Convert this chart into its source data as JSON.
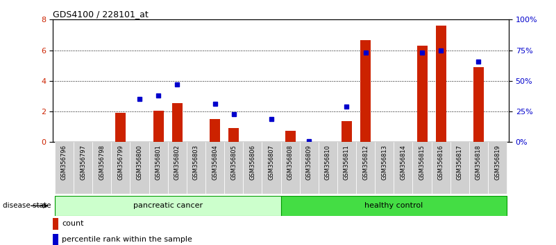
{
  "title": "GDS4100 / 228101_at",
  "samples": [
    "GSM356796",
    "GSM356797",
    "GSM356798",
    "GSM356799",
    "GSM356800",
    "GSM356801",
    "GSM356802",
    "GSM356803",
    "GSM356804",
    "GSM356805",
    "GSM356806",
    "GSM356807",
    "GSM356808",
    "GSM356809",
    "GSM356810",
    "GSM356811",
    "GSM356812",
    "GSM356813",
    "GSM356814",
    "GSM356815",
    "GSM356816",
    "GSM356817",
    "GSM356818",
    "GSM356819"
  ],
  "counts": [
    0,
    0,
    0,
    1.9,
    0,
    2.05,
    2.55,
    0,
    1.5,
    0.9,
    0,
    0,
    0.75,
    0,
    0,
    1.35,
    6.65,
    0,
    0,
    6.3,
    7.6,
    0,
    4.9,
    0
  ],
  "percentiles_pct": [
    null,
    null,
    null,
    null,
    35,
    38,
    47,
    null,
    31,
    23,
    null,
    19,
    null,
    1,
    null,
    29,
    73,
    null,
    null,
    73,
    75,
    null,
    66,
    null
  ],
  "group1_label": "pancreatic cancer",
  "group1_count": 12,
  "group2_label": "healthy control",
  "group2_count": 12,
  "disease_state_label": "disease state",
  "ylim_left": [
    0,
    8
  ],
  "ylim_right": [
    0,
    100
  ],
  "yticks_left": [
    0,
    2,
    4,
    6,
    8
  ],
  "yticks_right": [
    0,
    25,
    50,
    75,
    100
  ],
  "ytick_right_labels": [
    "0%",
    "25%",
    "50%",
    "75%",
    "100%"
  ],
  "bar_color": "#cc2200",
  "dot_color": "#0000cc",
  "group1_bg": "#ccffcc",
  "group2_bg": "#44dd44",
  "legend_count_color": "#cc2200",
  "legend_pct_color": "#0000cc"
}
